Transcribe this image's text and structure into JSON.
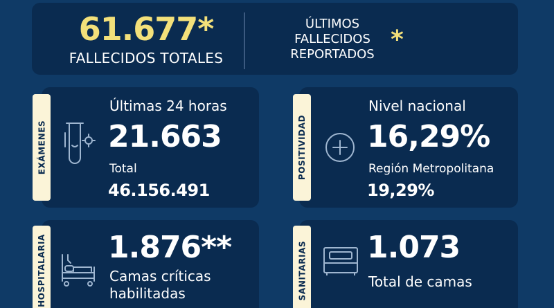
{
  "top": {
    "total_deaths": "61.677*",
    "total_deaths_label": "FALLECIDOS TOTALES",
    "last_deaths_label_1": "ÚLTIMOS",
    "last_deaths_label_2": "FALLECIDOS",
    "last_deaths_label_3": "REPORTADOS",
    "last_deaths_value": "*"
  },
  "examenes": {
    "tab": "EXÁMENES",
    "label": "Últimas 24 horas",
    "value": "21.663",
    "total_label": "Total",
    "total_value": "46.156.491",
    "icon": "test-tube-icon"
  },
  "positividad": {
    "tab": "POSITIVIDAD",
    "label": "Nivel nacional",
    "value": "16,29%",
    "region_label": "Región Metropolitana",
    "region_value": "19,29%",
    "icon": "plus-circle-icon"
  },
  "hospitalaria": {
    "tab": "HOSPITALARIA",
    "value": "1.876**",
    "label_1": "Camas críticas",
    "label_2": "habilitadas",
    "icon": "hospital-bed-icon"
  },
  "sanitarias": {
    "tab": "SANITARIAS",
    "value": "1.073",
    "label": "Total de camas",
    "icon": "bed-icon"
  },
  "colors": {
    "background": "#0f3a66",
    "card": "#0a2b50",
    "accent_yellow": "#f3e07a",
    "tab": "#fbf4d8"
  }
}
